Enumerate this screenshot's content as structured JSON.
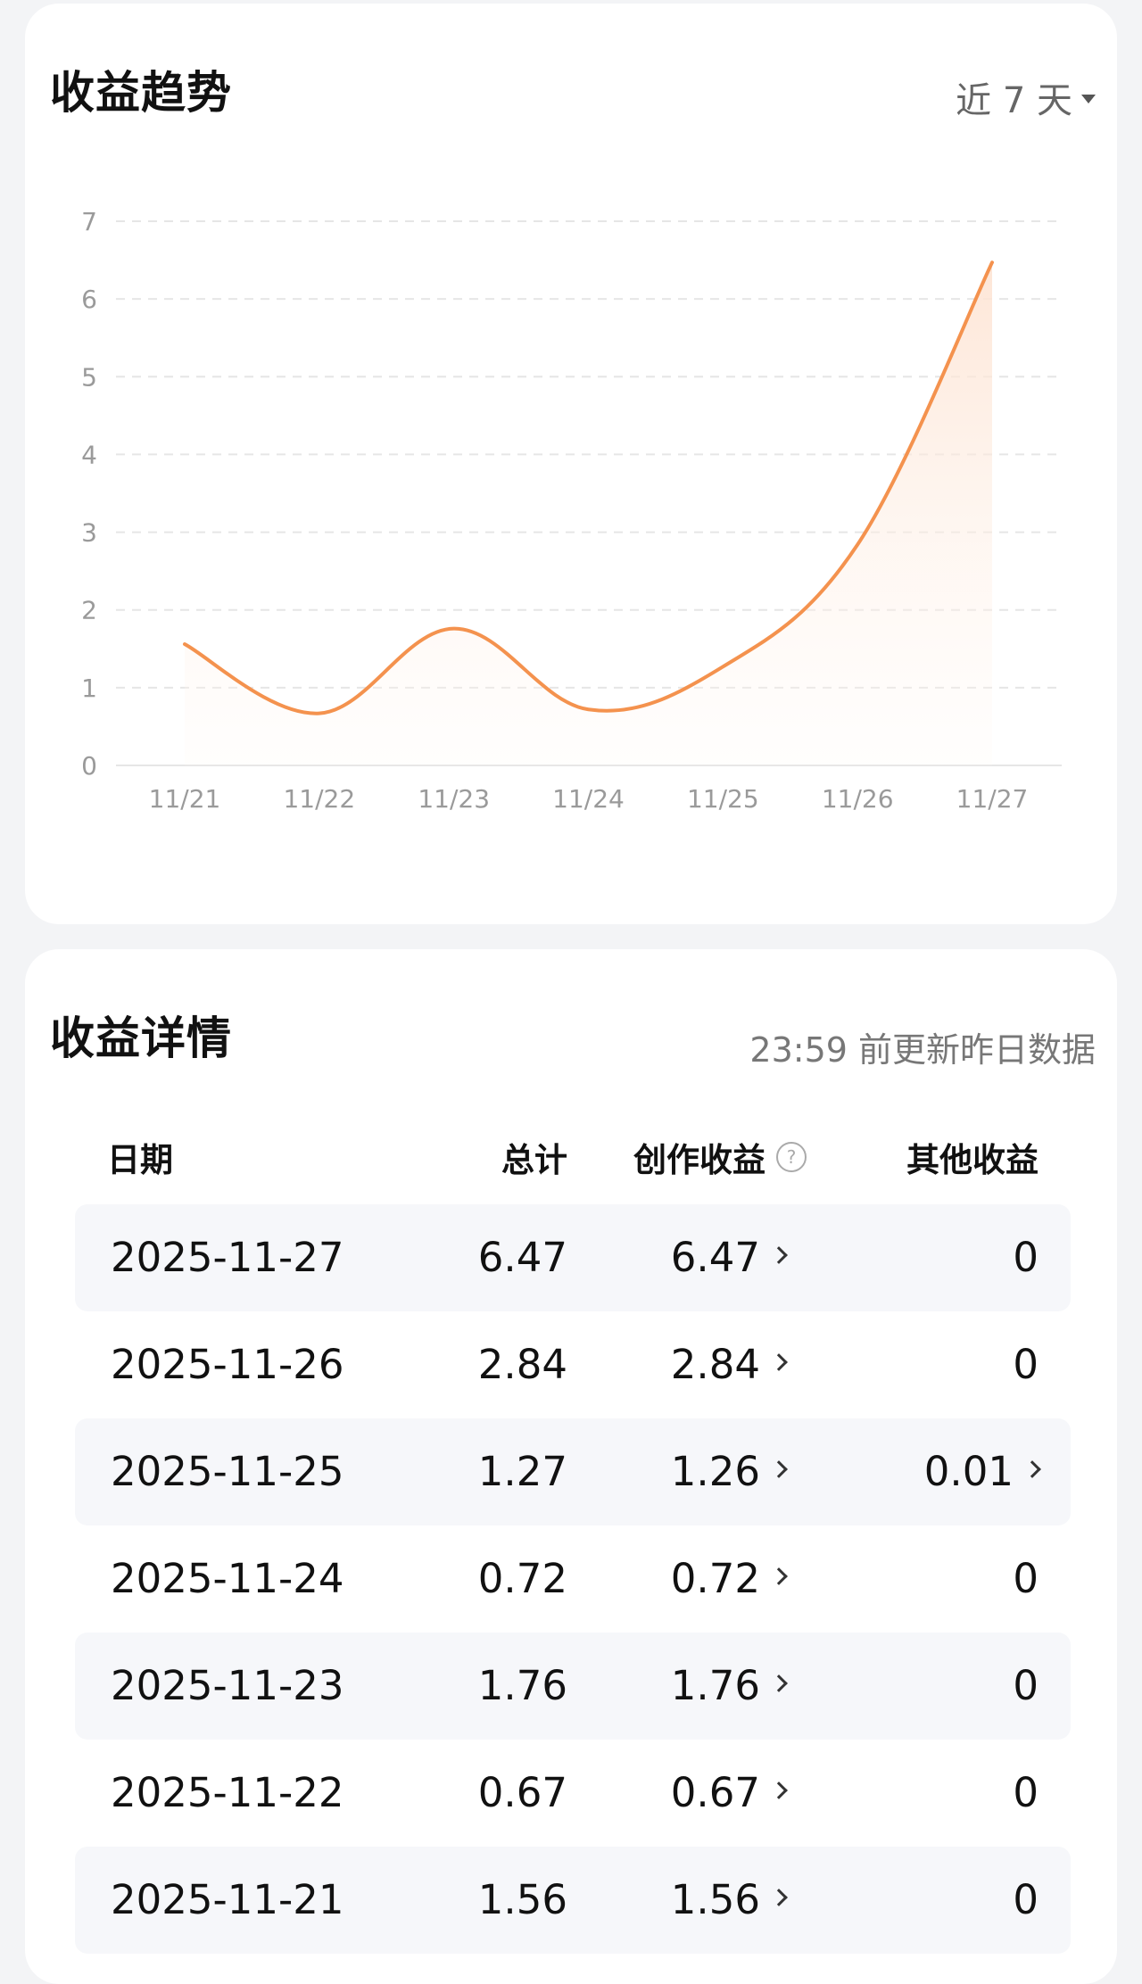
{
  "trend": {
    "title": "收益趋势",
    "range_label": "近 7 天"
  },
  "chart_data": {
    "type": "area",
    "title": "",
    "xlabel": "",
    "ylabel": "",
    "categories": [
      "11/21",
      "11/22",
      "11/23",
      "11/24",
      "11/25",
      "11/26",
      "11/27"
    ],
    "values": [
      1.56,
      0.67,
      1.76,
      0.72,
      1.27,
      2.84,
      6.47
    ],
    "ylim": [
      0,
      7
    ],
    "yticks": [
      0,
      1,
      2,
      3,
      4,
      5,
      6,
      7
    ],
    "grid": true,
    "line_color": "#f4924e",
    "fill_color": "#fde3d2"
  },
  "detail": {
    "title": "收益详情",
    "update_note": "23:59 前更新昨日数据",
    "headers": {
      "date": "日期",
      "total": "总计",
      "creation": "创作收益",
      "other": "其他收益"
    },
    "help_icon": "question-circle-icon",
    "rows": [
      {
        "date": "2025-11-27",
        "total": "6.47",
        "creation": "6.47",
        "other": "0"
      },
      {
        "date": "2025-11-26",
        "total": "2.84",
        "creation": "2.84",
        "other": "0"
      },
      {
        "date": "2025-11-25",
        "total": "1.27",
        "creation": "1.26",
        "other": "0.01",
        "other_has_detail": true
      },
      {
        "date": "2025-11-24",
        "total": "0.72",
        "creation": "0.72",
        "other": "0"
      },
      {
        "date": "2025-11-23",
        "total": "1.76",
        "creation": "1.76",
        "other": "0"
      },
      {
        "date": "2025-11-22",
        "total": "0.67",
        "creation": "0.67",
        "other": "0"
      },
      {
        "date": "2025-11-21",
        "total": "1.56",
        "creation": "1.56",
        "other": "0"
      }
    ]
  }
}
